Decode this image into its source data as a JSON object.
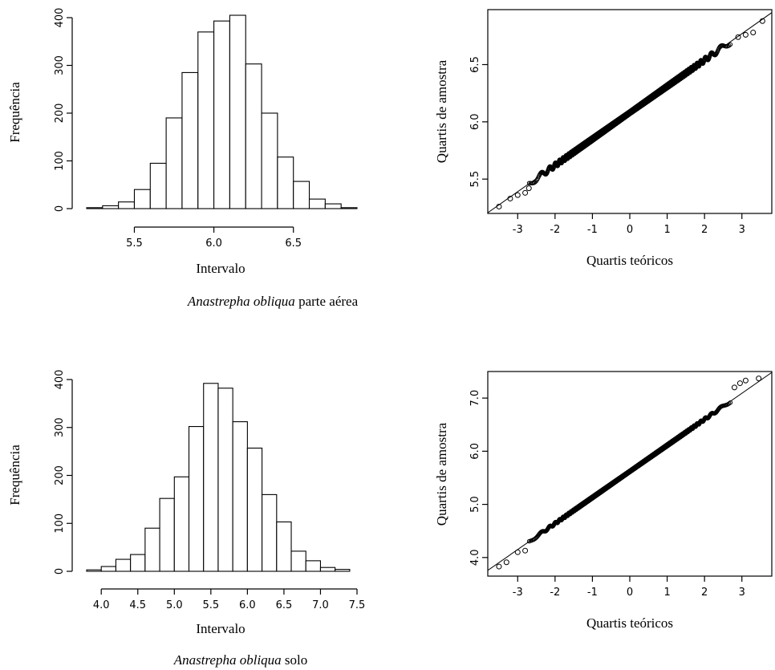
{
  "captions": [
    {
      "species": "Anastrepha obliqua",
      "suffix": " parte aérea"
    },
    {
      "species": "Anastrepha obliqua",
      "suffix": " solo"
    }
  ],
  "chart_data": [
    {
      "type": "bar",
      "subtype": "histogram",
      "xlabel": "Intervalo",
      "ylabel": "Frequência",
      "xlim": [
        5.2,
        6.9
      ],
      "ylim": [
        0,
        400
      ],
      "xticks": [
        5.5,
        6.0,
        6.5
      ],
      "xtick_labels": [
        "5.5",
        "6.0",
        "6.5"
      ],
      "yticks": [
        0,
        100,
        200,
        300,
        400
      ],
      "ytick_labels": [
        "0",
        "100",
        "200",
        "300",
        "400"
      ],
      "bin_width": 0.1,
      "bin_starts": [
        5.2,
        5.3,
        5.4,
        5.5,
        5.6,
        5.7,
        5.8,
        5.9,
        6.0,
        6.1,
        6.2,
        6.3,
        6.4,
        6.5,
        6.6,
        6.7,
        6.8
      ],
      "values": [
        2,
        6,
        14,
        40,
        95,
        190,
        285,
        370,
        393,
        405,
        303,
        200,
        108,
        57,
        20,
        10,
        2
      ]
    },
    {
      "type": "scatter",
      "subtype": "qq-plot",
      "xlabel": "Quartis teóricos",
      "ylabel": "Quartis de amostra",
      "xlim": [
        -3.8,
        3.8
      ],
      "ylim": [
        5.2,
        6.98
      ],
      "xticks": [
        -3,
        -2,
        -1,
        0,
        1,
        2,
        3
      ],
      "xtick_labels": [
        "-3",
        "-2",
        "-1",
        "0",
        "1",
        "2",
        "3"
      ],
      "yticks": [
        5.5,
        6.0,
        6.5
      ],
      "ytick_labels": [
        "5.5",
        "6.0",
        "6.5"
      ],
      "line": {
        "intercept": 6.08,
        "slope": 0.23
      },
      "outliers": [
        [
          -3.5,
          5.26
        ],
        [
          -3.2,
          5.33
        ],
        [
          -3.0,
          5.36
        ],
        [
          -2.8,
          5.38
        ],
        [
          -2.7,
          5.42
        ],
        [
          2.9,
          6.74
        ],
        [
          3.1,
          6.76
        ],
        [
          3.3,
          6.78
        ],
        [
          3.55,
          6.88
        ]
      ]
    },
    {
      "type": "bar",
      "subtype": "histogram",
      "xlabel": "Intervalo",
      "ylabel": "Frequência",
      "xlim": [
        3.8,
        7.5
      ],
      "ylim": [
        0,
        400
      ],
      "xticks": [
        4.0,
        4.5,
        5.0,
        5.5,
        6.0,
        6.5,
        7.0,
        7.5
      ],
      "xtick_labels": [
        "4.0",
        "4.5",
        "5.0",
        "5.5",
        "6.0",
        "6.5",
        "7.0",
        "7.5"
      ],
      "yticks": [
        0,
        100,
        200,
        300,
        400
      ],
      "ytick_labels": [
        "0",
        "100",
        "200",
        "300",
        "400"
      ],
      "bin_width": 0.2,
      "bin_starts": [
        3.8,
        4.0,
        4.2,
        4.4,
        4.6,
        4.8,
        5.0,
        5.2,
        5.4,
        5.6,
        5.8,
        6.0,
        6.2,
        6.4,
        6.6,
        6.8,
        7.0,
        7.2
      ],
      "values": [
        3,
        10,
        25,
        35,
        90,
        152,
        197,
        302,
        392,
        382,
        312,
        257,
        160,
        103,
        42,
        22,
        8,
        4
      ]
    },
    {
      "type": "scatter",
      "subtype": "qq-plot",
      "xlabel": "Quartis teóricos",
      "ylabel": "Quartis de amostra",
      "xlim": [
        -3.8,
        3.8
      ],
      "ylim": [
        3.65,
        7.5
      ],
      "xticks": [
        -3,
        -2,
        -1,
        0,
        1,
        2,
        3
      ],
      "xtick_labels": [
        "-3",
        "-2",
        "-1",
        "0",
        "1",
        "2",
        "3"
      ],
      "yticks": [
        4.0,
        5.0,
        6.0,
        7.0
      ],
      "ytick_labels": [
        "4.0",
        "5.0",
        "6.0",
        "7.0"
      ],
      "line": {
        "intercept": 5.62,
        "slope": 0.49
      },
      "outliers": [
        [
          -3.5,
          3.83
        ],
        [
          -3.3,
          3.91
        ],
        [
          -3.0,
          4.1
        ],
        [
          -2.8,
          4.13
        ],
        [
          2.8,
          7.2
        ],
        [
          2.95,
          7.28
        ],
        [
          3.1,
          7.33
        ],
        [
          3.45,
          7.37
        ]
      ]
    }
  ]
}
